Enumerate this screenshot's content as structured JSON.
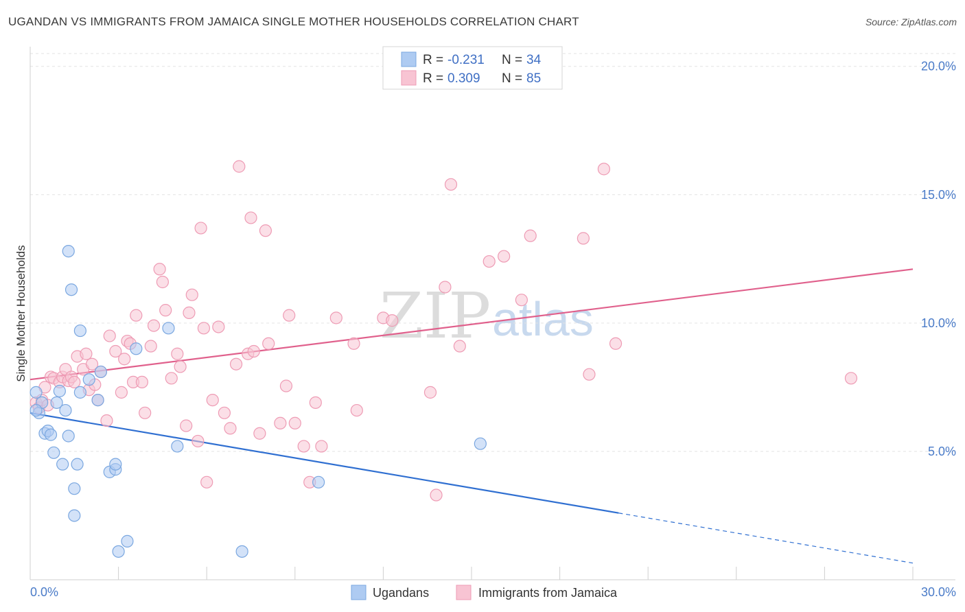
{
  "title": "UGANDAN VS IMMIGRANTS FROM JAMAICA SINGLE MOTHER HOUSEHOLDS CORRELATION CHART",
  "source": "Source: ZipAtlas.com",
  "watermark": {
    "zip": "ZIP",
    "atlas": "atlas"
  },
  "legend": {
    "row1": {
      "r_label": "R =",
      "r_value": "-0.231",
      "n_label": "N =",
      "n_value": "34"
    },
    "row2": {
      "r_label": "R =",
      "r_value": "0.309",
      "n_label": "N =",
      "n_value": "85"
    }
  },
  "chart_data": {
    "type": "scatter",
    "title": "UGANDAN VS IMMIGRANTS FROM JAMAICA SINGLE MOTHER HOUSEHOLDS CORRELATION CHART",
    "xlabel": "",
    "ylabel": "Single Mother Households",
    "xlim": [
      0,
      30
    ],
    "ylim": [
      0,
      20.5
    ],
    "x_tick_labels": [
      "0.0%",
      "30.0%"
    ],
    "y_ticks": [
      5,
      10,
      15,
      20
    ],
    "y_tick_labels": [
      "5.0%",
      "10.0%",
      "15.0%",
      "20.0%"
    ],
    "grid": true,
    "legend_position": "top-center",
    "colors": {
      "ugandans_fill": "#aecbf2",
      "ugandans_stroke": "#7aa7e0",
      "ugandans_line": "#2f6fd1",
      "jamaica_fill": "#f8c4d3",
      "jamaica_stroke": "#ee9bb4",
      "jamaica_line": "#e0608c",
      "tick_color": "#4a7bc8"
    },
    "series": [
      {
        "name": "Ugandans",
        "r": -0.231,
        "n": 34,
        "trend": {
          "x0": 0,
          "y0": 6.5,
          "x1": 20,
          "y1": 2.6,
          "dashed_to_x": 30,
          "dashed_to_y": 0.65
        },
        "points": [
          [
            0.2,
            7.3
          ],
          [
            0.3,
            6.5
          ],
          [
            0.4,
            6.9
          ],
          [
            0.5,
            5.7
          ],
          [
            0.6,
            5.8
          ],
          [
            0.7,
            5.65
          ],
          [
            0.8,
            4.95
          ],
          [
            0.9,
            6.9
          ],
          [
            1.0,
            7.35
          ],
          [
            1.1,
            4.5
          ],
          [
            1.2,
            6.6
          ],
          [
            1.3,
            5.6
          ],
          [
            1.4,
            11.3
          ],
          [
            1.5,
            3.55
          ],
          [
            1.7,
            7.3
          ],
          [
            1.3,
            12.8
          ],
          [
            1.5,
            2.5
          ],
          [
            1.6,
            4.5
          ],
          [
            1.7,
            9.7
          ],
          [
            2.0,
            7.8
          ],
          [
            2.3,
            7.0
          ],
          [
            2.4,
            8.1
          ],
          [
            2.7,
            4.2
          ],
          [
            2.9,
            4.3
          ],
          [
            2.9,
            4.5
          ],
          [
            3.0,
            1.1
          ],
          [
            3.3,
            1.5
          ],
          [
            3.6,
            9.0
          ],
          [
            4.7,
            9.8
          ],
          [
            5.0,
            5.2
          ],
          [
            7.2,
            1.1
          ],
          [
            9.8,
            3.8
          ],
          [
            15.3,
            5.3
          ],
          [
            0.2,
            6.6
          ]
        ]
      },
      {
        "name": "Immigrants from Jamaica",
        "r": 0.309,
        "n": 85,
        "trend": {
          "x0": 0,
          "y0": 7.8,
          "x1": 30,
          "y1": 12.1
        },
        "points": [
          [
            0.2,
            6.9
          ],
          [
            0.3,
            6.7
          ],
          [
            0.4,
            7.0
          ],
          [
            0.5,
            7.5
          ],
          [
            0.6,
            6.8
          ],
          [
            0.7,
            7.9
          ],
          [
            0.8,
            7.85
          ],
          [
            1.0,
            7.7
          ],
          [
            1.1,
            7.9
          ],
          [
            1.2,
            8.2
          ],
          [
            1.3,
            7.75
          ],
          [
            1.4,
            7.9
          ],
          [
            1.5,
            7.7
          ],
          [
            1.6,
            8.7
          ],
          [
            1.8,
            8.2
          ],
          [
            1.9,
            8.8
          ],
          [
            2.0,
            7.4
          ],
          [
            2.1,
            8.4
          ],
          [
            2.2,
            7.6
          ],
          [
            2.3,
            7.0
          ],
          [
            2.4,
            8.1
          ],
          [
            2.6,
            6.2
          ],
          [
            2.7,
            9.5
          ],
          [
            2.9,
            8.9
          ],
          [
            3.1,
            7.3
          ],
          [
            3.2,
            8.6
          ],
          [
            3.3,
            9.3
          ],
          [
            3.4,
            9.2
          ],
          [
            3.5,
            7.7
          ],
          [
            3.6,
            10.3
          ],
          [
            3.8,
            7.7
          ],
          [
            3.9,
            6.5
          ],
          [
            4.1,
            9.1
          ],
          [
            4.2,
            9.9
          ],
          [
            4.4,
            12.1
          ],
          [
            4.5,
            11.6
          ],
          [
            4.6,
            10.5
          ],
          [
            4.8,
            7.85
          ],
          [
            5.0,
            8.8
          ],
          [
            5.1,
            8.3
          ],
          [
            5.3,
            6.0
          ],
          [
            5.4,
            10.4
          ],
          [
            5.5,
            11.1
          ],
          [
            5.7,
            5.4
          ],
          [
            5.8,
            13.7
          ],
          [
            5.9,
            9.8
          ],
          [
            6.0,
            3.8
          ],
          [
            6.2,
            7.0
          ],
          [
            6.4,
            9.85
          ],
          [
            6.6,
            6.5
          ],
          [
            6.8,
            5.9
          ],
          [
            7.0,
            8.4
          ],
          [
            7.1,
            16.1
          ],
          [
            7.4,
            8.8
          ],
          [
            7.5,
            14.1
          ],
          [
            7.6,
            8.9
          ],
          [
            7.8,
            5.7
          ],
          [
            8.0,
            13.6
          ],
          [
            8.1,
            9.2
          ],
          [
            8.5,
            6.1
          ],
          [
            8.7,
            7.55
          ],
          [
            8.8,
            10.3
          ],
          [
            9.0,
            6.1
          ],
          [
            9.3,
            5.2
          ],
          [
            9.5,
            3.8
          ],
          [
            9.7,
            6.9
          ],
          [
            9.9,
            5.2
          ],
          [
            10.4,
            10.2
          ],
          [
            11.0,
            9.2
          ],
          [
            11.1,
            6.6
          ],
          [
            12.0,
            10.2
          ],
          [
            12.3,
            10.1
          ],
          [
            13.6,
            7.3
          ],
          [
            13.8,
            3.3
          ],
          [
            14.1,
            11.4
          ],
          [
            14.6,
            9.1
          ],
          [
            14.3,
            15.4
          ],
          [
            15.6,
            12.4
          ],
          [
            16.1,
            12.6
          ],
          [
            16.7,
            10.9
          ],
          [
            17.0,
            13.4
          ],
          [
            18.8,
            13.3
          ],
          [
            19.0,
            8.0
          ],
          [
            19.5,
            16.0
          ],
          [
            19.9,
            9.2
          ],
          [
            27.9,
            7.85
          ]
        ]
      }
    ]
  }
}
